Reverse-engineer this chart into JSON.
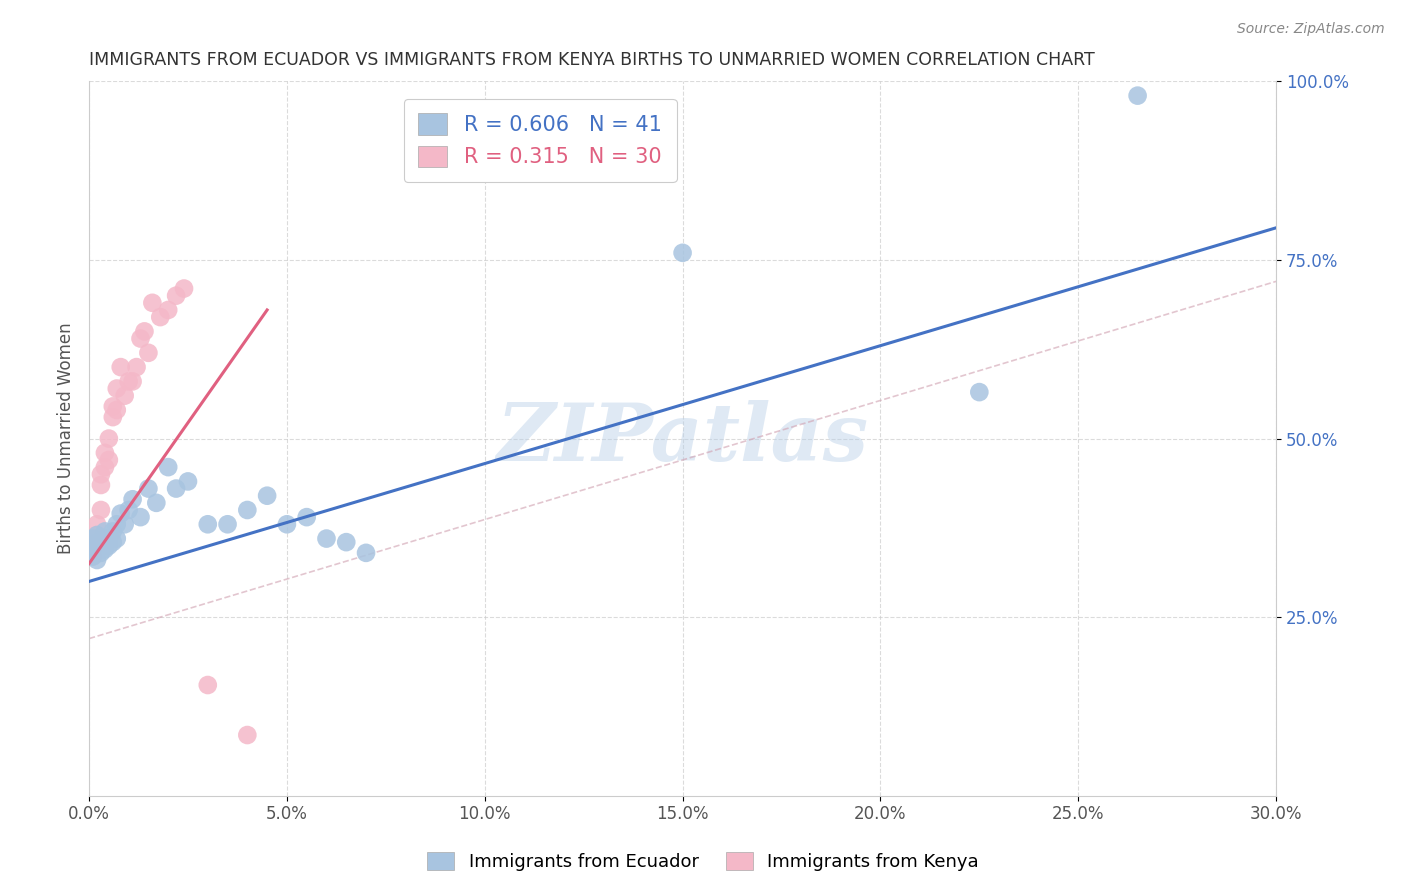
{
  "title": "IMMIGRANTS FROM ECUADOR VS IMMIGRANTS FROM KENYA BIRTHS TO UNMARRIED WOMEN CORRELATION CHART",
  "source": "Source: ZipAtlas.com",
  "ylabel": "Births to Unmarried Women",
  "legend_label1": "Immigrants from Ecuador",
  "legend_label2": "Immigrants from Kenya",
  "R1": 0.606,
  "N1": 41,
  "R2": 0.315,
  "N2": 30,
  "xlim": [
    0.0,
    0.3
  ],
  "ylim": [
    0.0,
    1.0
  ],
  "xtick_labels": [
    "0.0%",
    "5.0%",
    "10.0%",
    "15.0%",
    "20.0%",
    "25.0%",
    "30.0%"
  ],
  "xtick_values": [
    0.0,
    0.05,
    0.1,
    0.15,
    0.2,
    0.25,
    0.3
  ],
  "ytick_labels": [
    "25.0%",
    "50.0%",
    "75.0%",
    "100.0%"
  ],
  "ytick_values": [
    0.25,
    0.5,
    0.75,
    1.0
  ],
  "color_ecuador": "#a8c4e0",
  "color_kenya": "#f4b8c8",
  "color_line_ecuador": "#4472c4",
  "color_line_kenya": "#e06080",
  "watermark": "ZIPatlas",
  "ecuador_x": [
    0.001,
    0.001,
    0.001,
    0.002,
    0.002,
    0.002,
    0.002,
    0.003,
    0.003,
    0.003,
    0.004,
    0.004,
    0.004,
    0.005,
    0.005,
    0.006,
    0.006,
    0.007,
    0.007,
    0.008,
    0.009,
    0.01,
    0.011,
    0.013,
    0.015,
    0.017,
    0.02,
    0.022,
    0.025,
    0.03,
    0.035,
    0.04,
    0.045,
    0.05,
    0.055,
    0.06,
    0.065,
    0.07,
    0.15,
    0.225,
    0.265
  ],
  "ecuador_y": [
    0.335,
    0.345,
    0.36,
    0.33,
    0.35,
    0.355,
    0.365,
    0.34,
    0.35,
    0.355,
    0.345,
    0.36,
    0.37,
    0.35,
    0.36,
    0.355,
    0.37,
    0.38,
    0.36,
    0.395,
    0.38,
    0.4,
    0.415,
    0.39,
    0.43,
    0.41,
    0.46,
    0.43,
    0.44,
    0.38,
    0.38,
    0.4,
    0.42,
    0.38,
    0.39,
    0.36,
    0.355,
    0.34,
    0.76,
    0.565,
    0.98
  ],
  "kenya_x": [
    0.001,
    0.001,
    0.002,
    0.002,
    0.003,
    0.003,
    0.003,
    0.004,
    0.004,
    0.005,
    0.005,
    0.006,
    0.006,
    0.007,
    0.007,
    0.008,
    0.009,
    0.01,
    0.011,
    0.012,
    0.013,
    0.014,
    0.015,
    0.016,
    0.018,
    0.02,
    0.022,
    0.024,
    0.03,
    0.04
  ],
  "kenya_y": [
    0.335,
    0.345,
    0.365,
    0.38,
    0.4,
    0.435,
    0.45,
    0.46,
    0.48,
    0.47,
    0.5,
    0.53,
    0.545,
    0.54,
    0.57,
    0.6,
    0.56,
    0.58,
    0.58,
    0.6,
    0.64,
    0.65,
    0.62,
    0.69,
    0.67,
    0.68,
    0.7,
    0.71,
    0.155,
    0.085
  ],
  "line_ecuador_x0": 0.0,
  "line_ecuador_x1": 0.3,
  "line_ecuador_y0": 0.3,
  "line_ecuador_y1": 0.795,
  "line_kenya_x0": 0.0,
  "line_kenya_x1": 0.045,
  "line_kenya_y0": 0.325,
  "line_kenya_y1": 0.68,
  "ref_line_x0": 0.0,
  "ref_line_x1": 0.3,
  "ref_line_y0": 0.22,
  "ref_line_y1": 0.72
}
